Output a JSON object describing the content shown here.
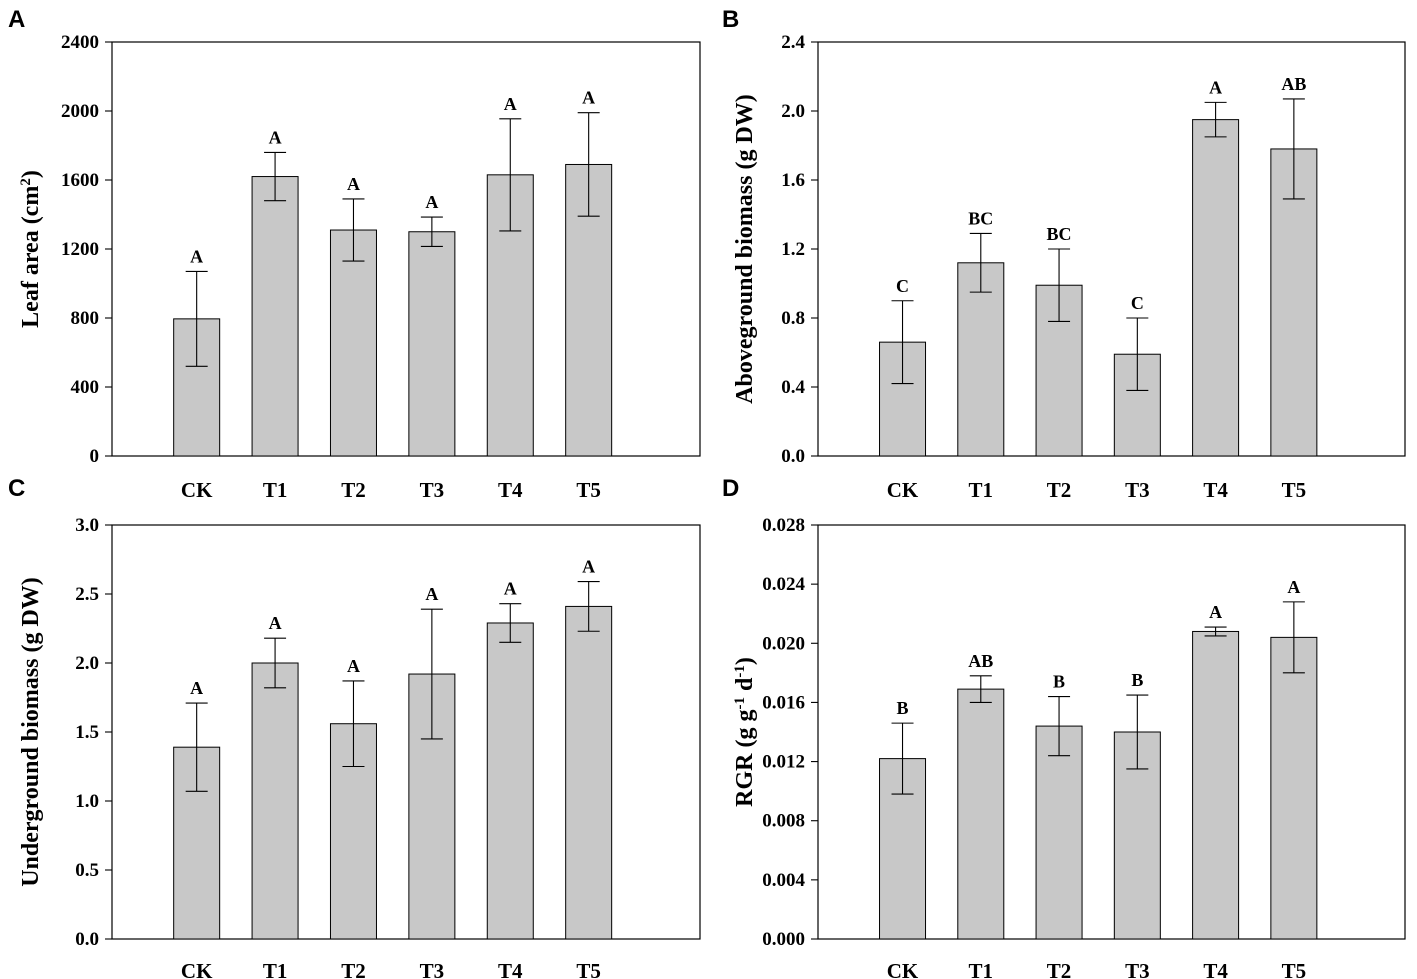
{
  "chart_data": [
    {
      "type": "bar",
      "panel": "A",
      "ylabel": "Leaf area (cm",
      "ylabel_sup": "2",
      "ylabel_tail": ")",
      "categories": [
        "CK",
        "T1",
        "T2",
        "T3",
        "T4",
        "T5"
      ],
      "values": [
        795,
        1620,
        1310,
        1300,
        1630,
        1690
      ],
      "errors": [
        275,
        140,
        180,
        85,
        325,
        300
      ],
      "letters": [
        "A",
        "A",
        "A",
        "A",
        "A",
        "A"
      ],
      "ylim": [
        0,
        2400
      ],
      "yticks": [
        "0",
        "400",
        "800",
        "1200",
        "1600",
        "2000",
        "2400"
      ],
      "ytick_values": [
        0,
        400,
        800,
        1200,
        1600,
        2000,
        2400
      ]
    },
    {
      "type": "bar",
      "panel": "B",
      "ylabel": "Aboveground biomass (g DW)",
      "categories": [
        "CK",
        "T1",
        "T2",
        "T3",
        "T4",
        "T5"
      ],
      "values": [
        0.66,
        1.12,
        0.99,
        0.59,
        1.95,
        1.78
      ],
      "errors": [
        0.24,
        0.17,
        0.21,
        0.21,
        0.1,
        0.29
      ],
      "letters": [
        "C",
        "BC",
        "BC",
        "C",
        "A",
        "AB"
      ],
      "ylim": [
        0,
        2.4
      ],
      "yticks": [
        "0.0",
        "0.4",
        "0.8",
        "1.2",
        "1.6",
        "2.0",
        "2.4"
      ],
      "ytick_values": [
        0,
        0.4,
        0.8,
        1.2,
        1.6,
        2.0,
        2.4
      ]
    },
    {
      "type": "bar",
      "panel": "C",
      "ylabel": "Underground biomass (g DW)",
      "categories": [
        "CK",
        "T1",
        "T2",
        "T3",
        "T4",
        "T5"
      ],
      "values": [
        1.39,
        2.0,
        1.56,
        1.92,
        2.29,
        2.41
      ],
      "errors": [
        0.32,
        0.18,
        0.31,
        0.47,
        0.14,
        0.18
      ],
      "letters": [
        "A",
        "A",
        "A",
        "A",
        "A",
        "A"
      ],
      "ylim": [
        0,
        3.0
      ],
      "yticks": [
        "0.0",
        "0.5",
        "1.0",
        "1.5",
        "2.0",
        "2.5",
        "3.0"
      ],
      "ytick_values": [
        0,
        0.5,
        1.0,
        1.5,
        2.0,
        2.5,
        3.0
      ]
    },
    {
      "type": "bar",
      "panel": "D",
      "ylabel": "RGR (g g",
      "ylabel_sup": "-1",
      "ylabel_mid": " d",
      "ylabel_sup2": "-1",
      "ylabel_tail": ")",
      "categories": [
        "CK",
        "T1",
        "T2",
        "T3",
        "T4",
        "T5"
      ],
      "values": [
        0.0122,
        0.0169,
        0.0144,
        0.014,
        0.0208,
        0.0204
      ],
      "errors": [
        0.0024,
        0.0009,
        0.002,
        0.0025,
        0.0003,
        0.0024
      ],
      "letters": [
        "B",
        "AB",
        "B",
        "B",
        "A",
        "A"
      ],
      "ylim": [
        0,
        0.028
      ],
      "yticks": [
        "0.000",
        "0.004",
        "0.008",
        "0.012",
        "0.016",
        "0.020",
        "0.024",
        "0.028"
      ],
      "ytick_values": [
        0,
        0.004,
        0.008,
        0.012,
        0.016,
        0.02,
        0.024,
        0.028
      ]
    }
  ]
}
